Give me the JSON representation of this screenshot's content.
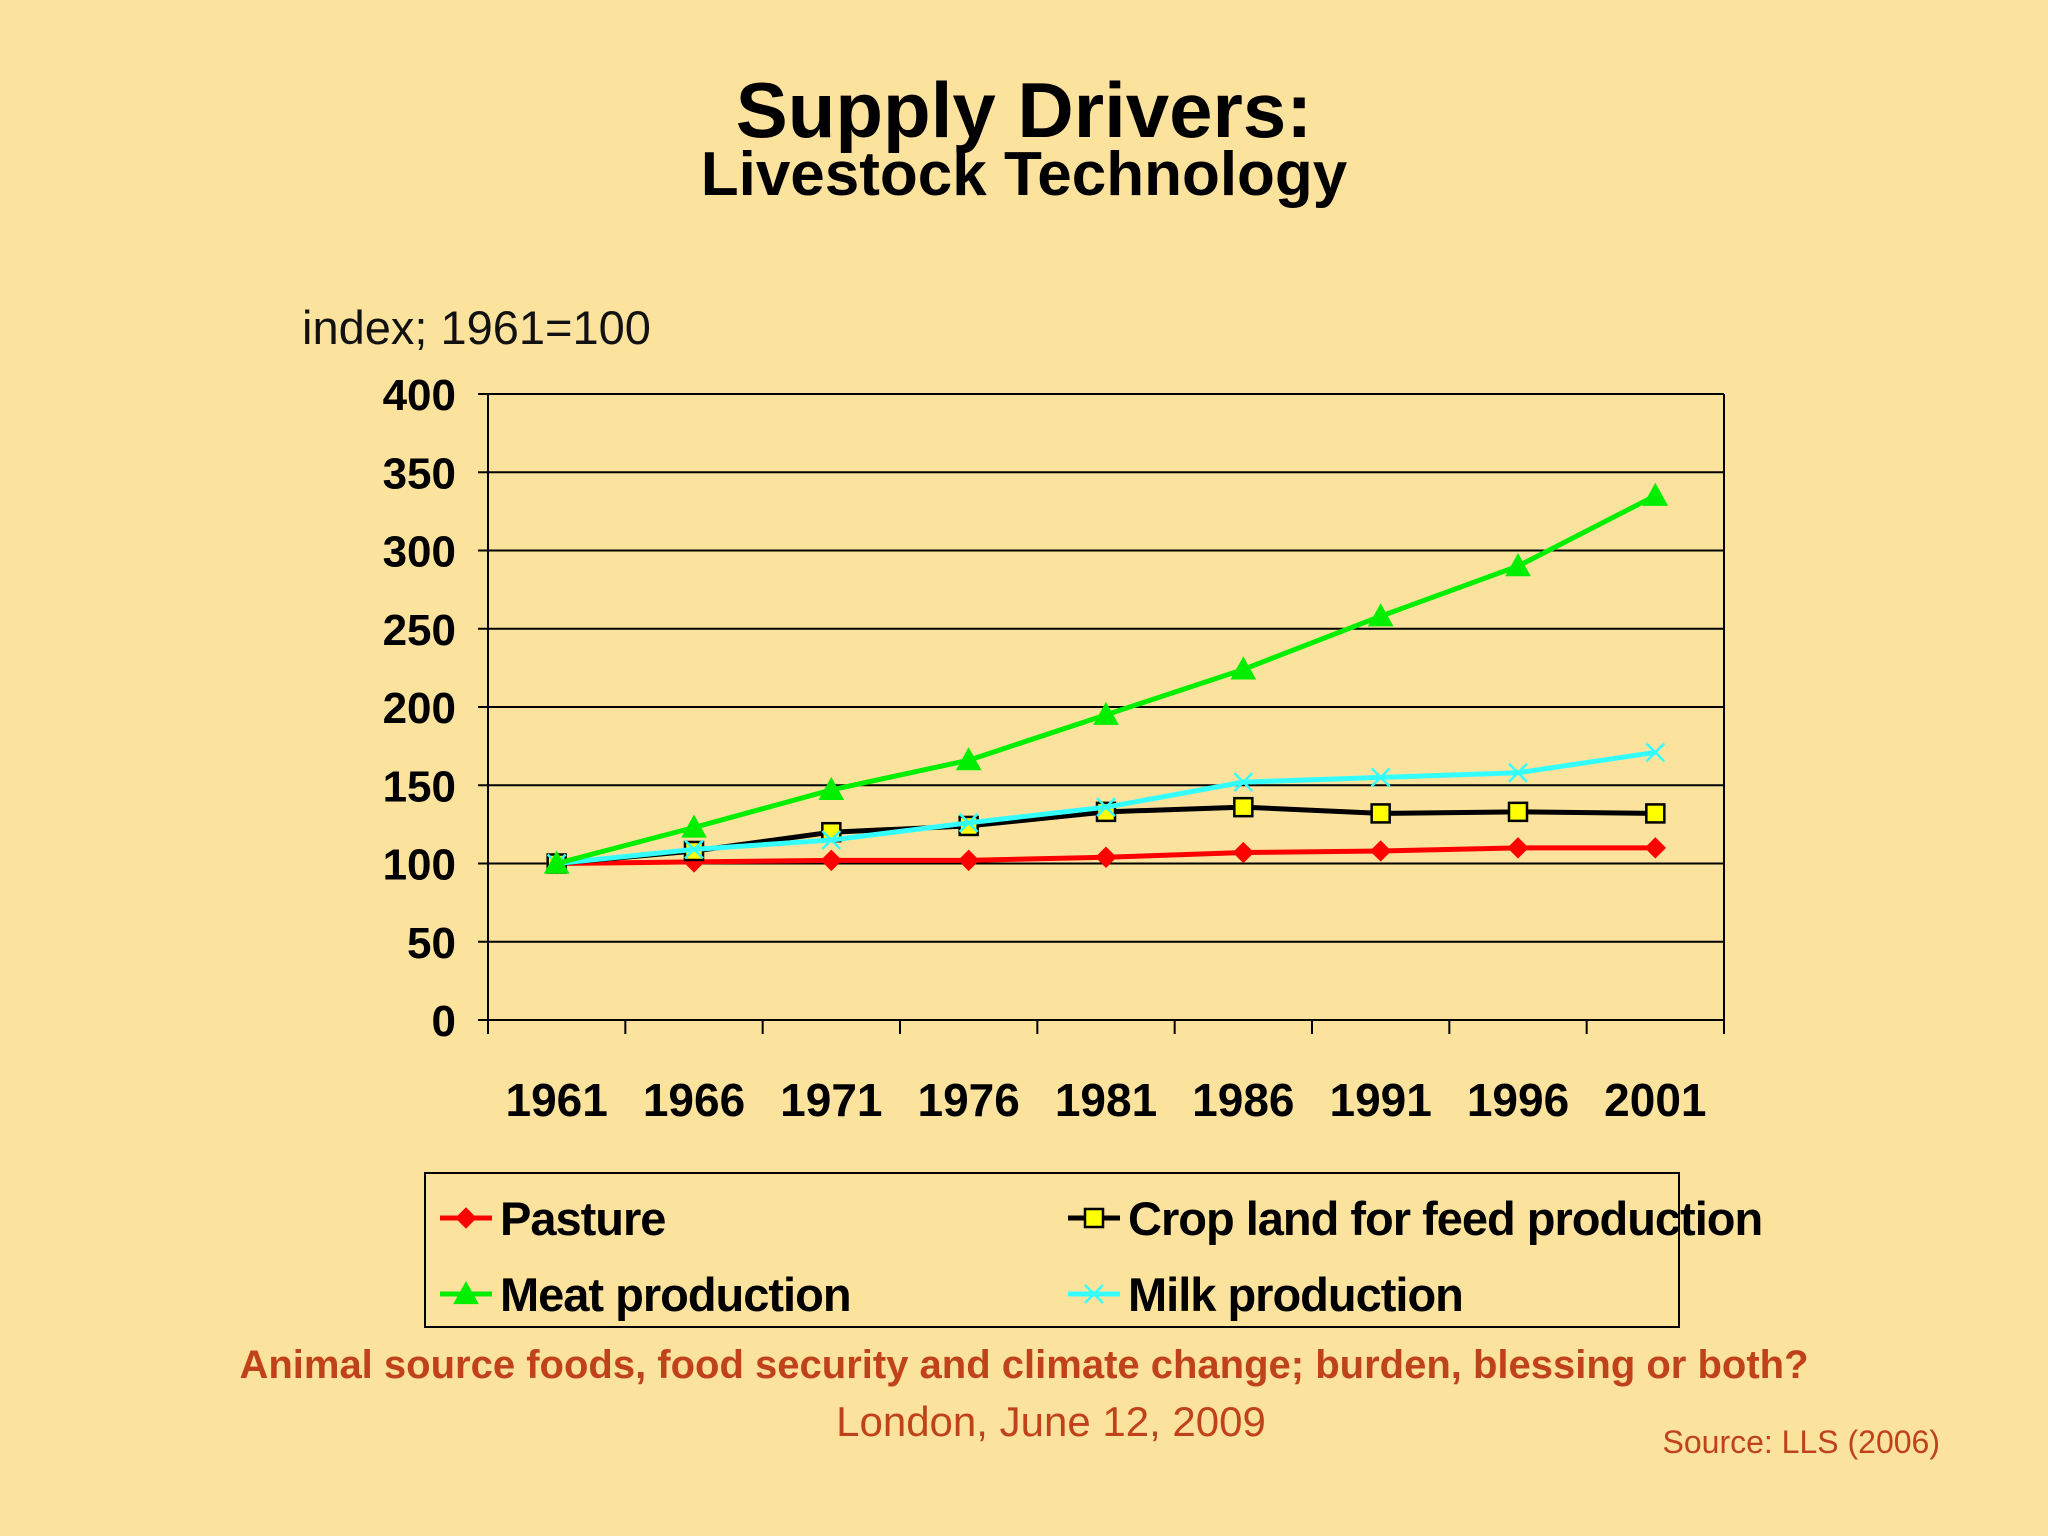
{
  "title": "Supply Drivers:",
  "subtitle": "Livestock Technology",
  "footer": {
    "event": "Animal source foods, food security and climate change; burden, blessing or both?",
    "date": "London, June 12, 2009",
    "source": "Source:  LLS (2006)"
  },
  "colors": {
    "background": "#fbe39d",
    "pasture": "#ff0000",
    "crop_line": "#000000",
    "crop_marker": "#ffff00",
    "meat": "#00ee00",
    "milk": "#33ffff",
    "footer_text": "#c0421b"
  },
  "chart_data": {
    "type": "line",
    "ylabel": "index; 1961=100",
    "xlabel": "",
    "categories": [
      "1961",
      "1966",
      "1971",
      "1976",
      "1981",
      "1986",
      "1991",
      "1996",
      "2001"
    ],
    "ylim": [
      0,
      400
    ],
    "yticks": [
      0,
      50,
      100,
      150,
      200,
      250,
      300,
      350,
      400
    ],
    "grid": true,
    "legend_position": "bottom",
    "series": [
      {
        "name": "Pasture",
        "marker": "diamond",
        "color": "#ff0000",
        "values": [
          100,
          101,
          102,
          102,
          104,
          107,
          108,
          110,
          110
        ]
      },
      {
        "name": "Crop land for feed production",
        "marker": "square",
        "color": "#000000",
        "values": [
          100,
          108,
          120,
          124,
          133,
          136,
          132,
          133,
          132
        ]
      },
      {
        "name": "Meat production",
        "marker": "triangle",
        "color": "#00ee00",
        "values": [
          100,
          123,
          147,
          166,
          195,
          224,
          258,
          290,
          335
        ]
      },
      {
        "name": "Milk production",
        "marker": "x",
        "color": "#33ffff",
        "values": [
          100,
          109,
          115,
          126,
          136,
          152,
          155,
          158,
          171
        ]
      }
    ]
  }
}
